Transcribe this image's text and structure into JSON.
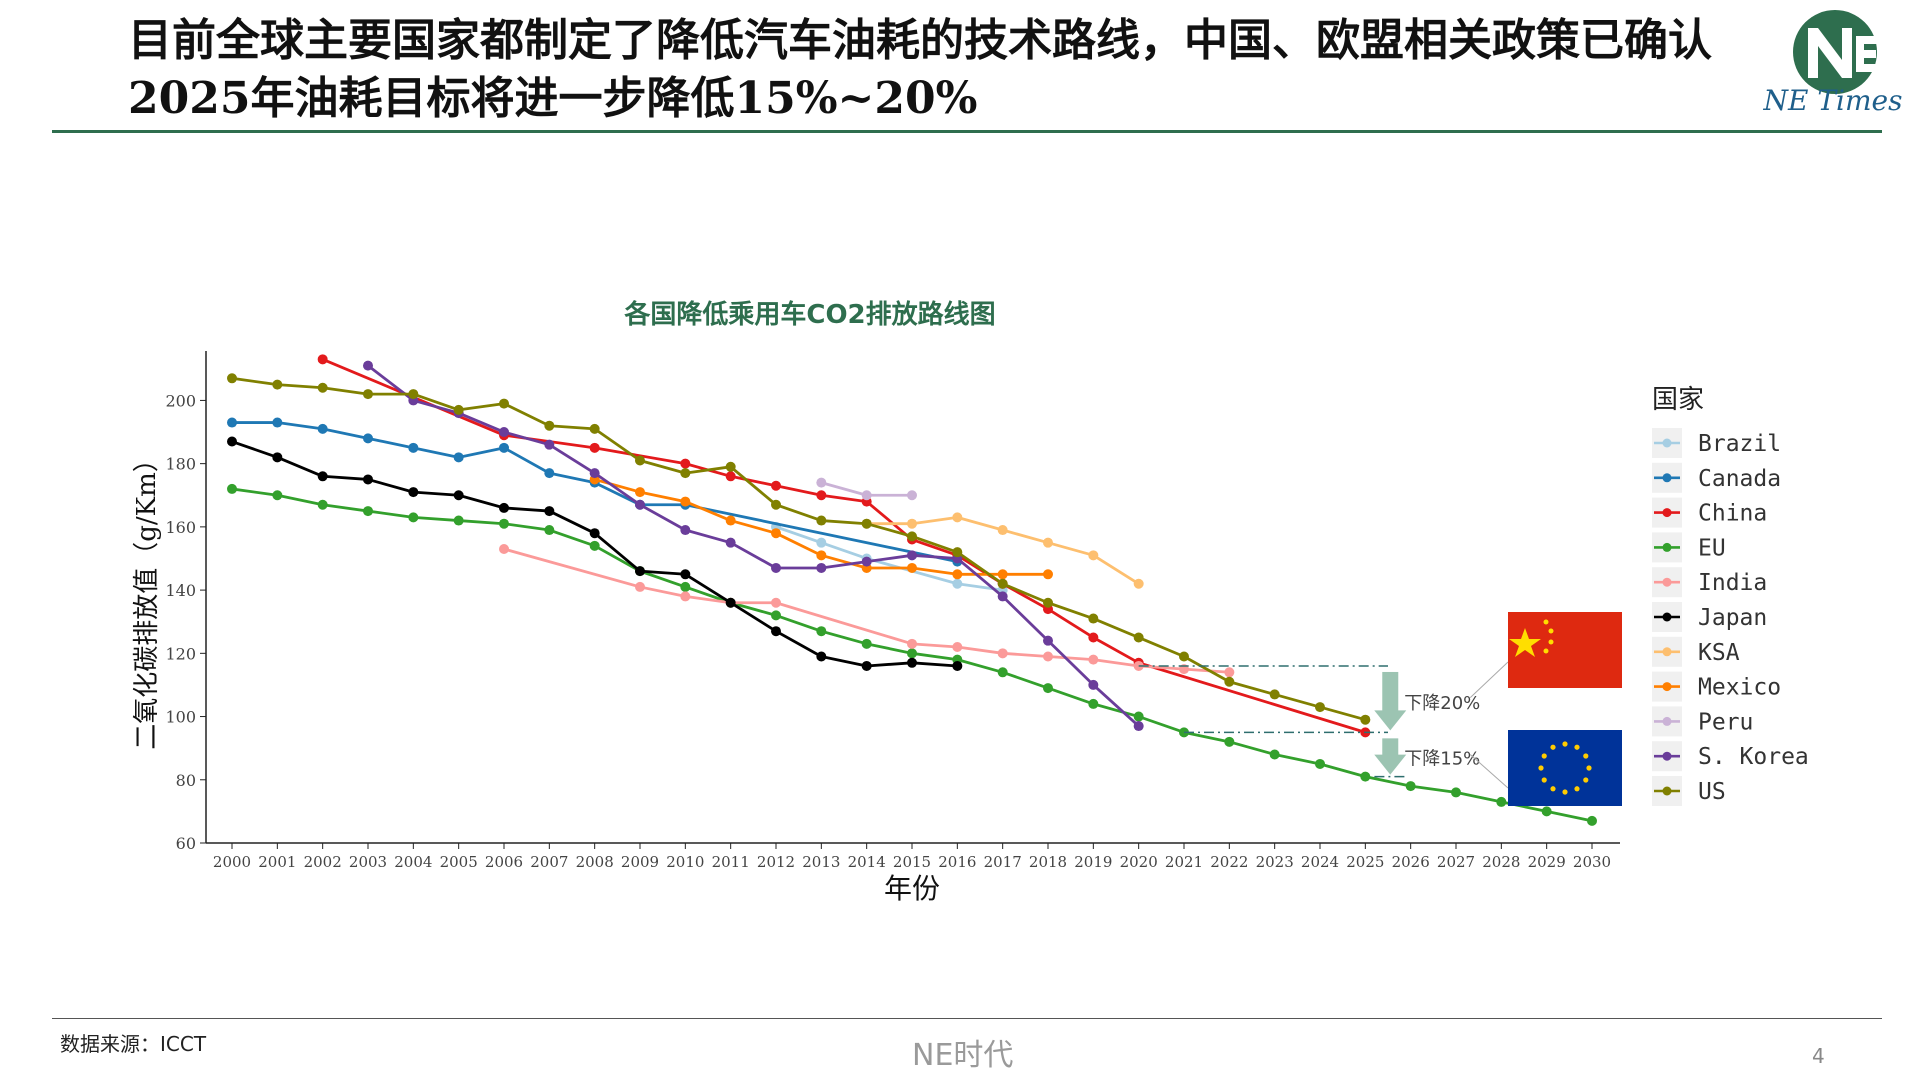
{
  "header": {
    "title": "目前全球主要国家都制定了降低汽车油耗的技术路线，中国、欧盟相关政策已确认2025年油耗目标将进一步降低15%~20%",
    "logo_text": "NE Times"
  },
  "footer": {
    "source": "数据来源：ICCT",
    "brand": "NE时代",
    "page": "4"
  },
  "colors": {
    "accent": "#2e6e4e",
    "Brazil": "#a6cee3",
    "Canada": "#1f78b4",
    "China": "#e31a1c",
    "EU": "#33a02c",
    "India": "#fb9a99",
    "Japan": "#000000",
    "KSA": "#fdbf6f",
    "Mexico": "#ff7f00",
    "Peru": "#cab2d6",
    "S. Korea": "#6a3d9a",
    "US": "#808000",
    "annotation_arrow": "#9cc4b2",
    "china_flag": "#de2910",
    "eu_flag": "#003399"
  },
  "chart_data": {
    "type": "line",
    "title": "各国降低乘用车CO2排放路线图",
    "xlabel": "年份",
    "ylabel": "二氧化碳排放值（g/Km）",
    "legend_title": "国家",
    "legend_position": "right",
    "xlim": [
      2000,
      2030
    ],
    "ylim": [
      60,
      215
    ],
    "yticks": [
      60,
      80,
      100,
      120,
      140,
      160,
      180,
      200
    ],
    "xticks": [
      2000,
      2001,
      2002,
      2003,
      2004,
      2005,
      2006,
      2007,
      2008,
      2009,
      2010,
      2011,
      2012,
      2013,
      2014,
      2015,
      2016,
      2017,
      2018,
      2019,
      2020,
      2021,
      2022,
      2023,
      2024,
      2025,
      2026,
      2027,
      2028,
      2029,
      2030
    ],
    "series": [
      {
        "name": "Brazil",
        "points": [
          [
            2012,
            160
          ],
          [
            2013,
            155
          ],
          [
            2014,
            150
          ],
          [
            2016,
            142
          ],
          [
            2017,
            140
          ]
        ]
      },
      {
        "name": "Canada",
        "points": [
          [
            2000,
            193
          ],
          [
            2001,
            193
          ],
          [
            2002,
            191
          ],
          [
            2003,
            188
          ],
          [
            2004,
            185
          ],
          [
            2005,
            182
          ],
          [
            2006,
            185
          ],
          [
            2007,
            177
          ],
          [
            2008,
            174
          ],
          [
            2009,
            167
          ],
          [
            2010,
            167
          ],
          [
            2016,
            149
          ]
        ]
      },
      {
        "name": "China",
        "points": [
          [
            2002,
            213
          ],
          [
            2006,
            189
          ],
          [
            2008,
            185
          ],
          [
            2010,
            180
          ],
          [
            2011,
            176
          ],
          [
            2012,
            173
          ],
          [
            2013,
            170
          ],
          [
            2014,
            168
          ],
          [
            2015,
            156
          ],
          [
            2016,
            151
          ],
          [
            2017,
            142
          ],
          [
            2018,
            134
          ],
          [
            2019,
            125
          ],
          [
            2020,
            117
          ],
          [
            2025,
            95
          ]
        ]
      },
      {
        "name": "EU",
        "points": [
          [
            2000,
            172
          ],
          [
            2001,
            170
          ],
          [
            2002,
            167
          ],
          [
            2003,
            165
          ],
          [
            2004,
            163
          ],
          [
            2005,
            162
          ],
          [
            2006,
            161
          ],
          [
            2007,
            159
          ],
          [
            2008,
            154
          ],
          [
            2009,
            146
          ],
          [
            2010,
            141
          ],
          [
            2011,
            136
          ],
          [
            2012,
            132
          ],
          [
            2013,
            127
          ],
          [
            2014,
            123
          ],
          [
            2015,
            120
          ],
          [
            2016,
            118
          ],
          [
            2017,
            114
          ],
          [
            2018,
            109
          ],
          [
            2019,
            104
          ],
          [
            2020,
            100
          ],
          [
            2021,
            95
          ],
          [
            2022,
            92
          ],
          [
            2023,
            88
          ],
          [
            2024,
            85
          ],
          [
            2025,
            81
          ],
          [
            2026,
            78
          ],
          [
            2027,
            76
          ],
          [
            2028,
            73
          ],
          [
            2029,
            70
          ],
          [
            2030,
            67
          ]
        ]
      },
      {
        "name": "India",
        "points": [
          [
            2006,
            153
          ],
          [
            2009,
            141
          ],
          [
            2010,
            138
          ],
          [
            2011,
            136
          ],
          [
            2012,
            136
          ],
          [
            2015,
            123
          ],
          [
            2016,
            122
          ],
          [
            2017,
            120
          ],
          [
            2018,
            119
          ],
          [
            2019,
            118
          ],
          [
            2020,
            116
          ],
          [
            2021,
            115
          ],
          [
            2022,
            114
          ]
        ]
      },
      {
        "name": "Japan",
        "points": [
          [
            2000,
            187
          ],
          [
            2001,
            182
          ],
          [
            2002,
            176
          ],
          [
            2003,
            175
          ],
          [
            2004,
            171
          ],
          [
            2005,
            170
          ],
          [
            2006,
            166
          ],
          [
            2007,
            165
          ],
          [
            2008,
            158
          ],
          [
            2009,
            146
          ],
          [
            2010,
            145
          ],
          [
            2011,
            136
          ],
          [
            2012,
            127
          ],
          [
            2013,
            119
          ],
          [
            2014,
            116
          ],
          [
            2015,
            117
          ],
          [
            2016,
            116
          ]
        ]
      },
      {
        "name": "KSA",
        "points": [
          [
            2014,
            161
          ],
          [
            2015,
            161
          ],
          [
            2016,
            163
          ],
          [
            2017,
            159
          ],
          [
            2018,
            155
          ],
          [
            2019,
            151
          ],
          [
            2020,
            142
          ]
        ]
      },
      {
        "name": "Mexico",
        "points": [
          [
            2008,
            175
          ],
          [
            2009,
            171
          ],
          [
            2010,
            168
          ],
          [
            2011,
            162
          ],
          [
            2012,
            158
          ],
          [
            2013,
            151
          ],
          [
            2014,
            147
          ],
          [
            2015,
            147
          ],
          [
            2016,
            145
          ],
          [
            2017,
            145
          ],
          [
            2018,
            145
          ]
        ]
      },
      {
        "name": "Peru",
        "points": [
          [
            2013,
            174
          ],
          [
            2014,
            170
          ],
          [
            2015,
            170
          ]
        ]
      },
      {
        "name": "S. Korea",
        "points": [
          [
            2003,
            211
          ],
          [
            2004,
            200
          ],
          [
            2005,
            196
          ],
          [
            2006,
            190
          ],
          [
            2007,
            186
          ],
          [
            2008,
            177
          ],
          [
            2009,
            167
          ],
          [
            2010,
            159
          ],
          [
            2011,
            155
          ],
          [
            2012,
            147
          ],
          [
            2013,
            147
          ],
          [
            2014,
            149
          ],
          [
            2015,
            151
          ],
          [
            2016,
            150
          ],
          [
            2017,
            138
          ],
          [
            2018,
            124
          ],
          [
            2019,
            110
          ],
          [
            2020,
            97
          ]
        ]
      },
      {
        "name": "US",
        "points": [
          [
            2000,
            207
          ],
          [
            2001,
            205
          ],
          [
            2002,
            204
          ],
          [
            2003,
            202
          ],
          [
            2004,
            202
          ],
          [
            2005,
            197
          ],
          [
            2006,
            199
          ],
          [
            2007,
            192
          ],
          [
            2008,
            191
          ],
          [
            2009,
            181
          ],
          [
            2010,
            177
          ],
          [
            2011,
            179
          ],
          [
            2012,
            167
          ],
          [
            2013,
            162
          ],
          [
            2014,
            161
          ],
          [
            2015,
            157
          ],
          [
            2016,
            152
          ],
          [
            2017,
            142
          ],
          [
            2018,
            136
          ],
          [
            2019,
            131
          ],
          [
            2020,
            125
          ],
          [
            2021,
            119
          ],
          [
            2022,
            111
          ],
          [
            2023,
            107
          ],
          [
            2024,
            103
          ],
          [
            2025,
            99
          ]
        ]
      }
    ],
    "annotations": [
      {
        "text": "下降20%",
        "from": 116,
        "to": 95,
        "flag": "china"
      },
      {
        "text": "下降15%",
        "from": 95,
        "to": 81,
        "flag": "eu"
      }
    ]
  }
}
